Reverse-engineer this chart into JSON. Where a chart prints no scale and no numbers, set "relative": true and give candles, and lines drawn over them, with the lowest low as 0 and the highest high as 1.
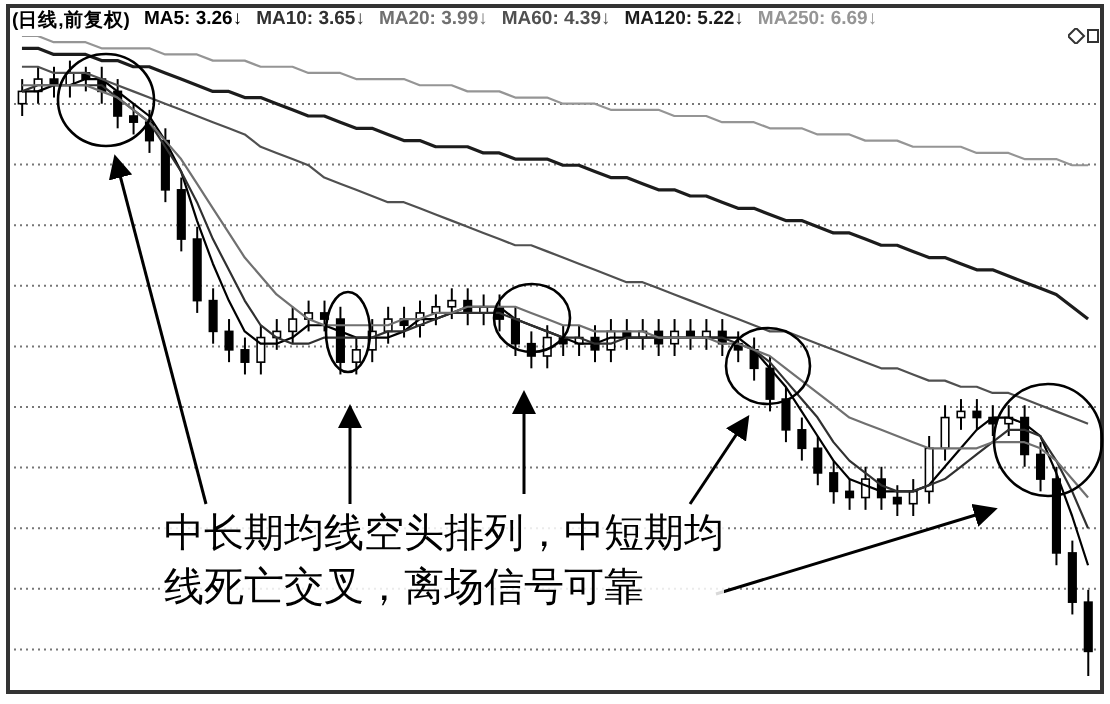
{
  "chart_data": {
    "type": "candlestick",
    "title": "(日线,前复权)",
    "relative": true,
    "grid": true,
    "legend": "top left",
    "annotations": [
      "中长期均线空头排列，中短期均线死亡交叉，离场信号可靠"
    ],
    "categories": [
      null,
      null,
      null,
      null,
      null,
      null,
      null,
      null,
      null,
      null,
      null,
      null,
      null,
      null,
      null,
      null,
      null,
      null,
      null,
      null,
      null,
      null,
      null,
      null,
      null,
      null,
      null,
      null,
      null,
      null,
      null,
      null,
      null,
      null,
      null,
      null,
      null,
      null,
      null,
      null,
      null,
      null,
      null,
      null,
      null,
      null,
      null,
      null,
      null,
      null,
      null,
      null,
      null,
      null,
      null,
      null,
      null,
      null,
      null,
      null,
      null,
      null,
      null,
      null,
      null,
      null,
      null,
      null
    ],
    "ohlc": [
      [
        0.93,
        0.97,
        0.91,
        0.95
      ],
      [
        0.95,
        0.99,
        0.93,
        0.97
      ],
      [
        0.97,
        0.99,
        0.94,
        0.96
      ],
      [
        0.96,
        1.0,
        0.94,
        0.98
      ],
      [
        0.98,
        0.99,
        0.95,
        0.97
      ],
      [
        0.97,
        0.99,
        0.93,
        0.95
      ],
      [
        0.95,
        0.97,
        0.89,
        0.91
      ],
      [
        0.91,
        0.93,
        0.88,
        0.9
      ],
      [
        0.9,
        0.92,
        0.85,
        0.87
      ],
      [
        0.87,
        0.89,
        0.77,
        0.79
      ],
      [
        0.79,
        0.81,
        0.69,
        0.71
      ],
      [
        0.71,
        0.73,
        0.59,
        0.61
      ],
      [
        0.61,
        0.63,
        0.54,
        0.56
      ],
      [
        0.56,
        0.58,
        0.51,
        0.53
      ],
      [
        0.53,
        0.55,
        0.49,
        0.51
      ],
      [
        0.51,
        0.57,
        0.49,
        0.55
      ],
      [
        0.55,
        0.58,
        0.53,
        0.56
      ],
      [
        0.56,
        0.6,
        0.54,
        0.58
      ],
      [
        0.58,
        0.61,
        0.56,
        0.59
      ],
      [
        0.59,
        0.61,
        0.56,
        0.58
      ],
      [
        0.58,
        0.6,
        0.49,
        0.51
      ],
      [
        0.51,
        0.55,
        0.49,
        0.53
      ],
      [
        0.53,
        0.58,
        0.51,
        0.56
      ],
      [
        0.56,
        0.6,
        0.54,
        0.58
      ],
      [
        0.58,
        0.6,
        0.55,
        0.57
      ],
      [
        0.57,
        0.61,
        0.55,
        0.59
      ],
      [
        0.59,
        0.62,
        0.57,
        0.6
      ],
      [
        0.6,
        0.63,
        0.58,
        0.61
      ],
      [
        0.61,
        0.63,
        0.57,
        0.59
      ],
      [
        0.59,
        0.62,
        0.57,
        0.6
      ],
      [
        0.6,
        0.62,
        0.56,
        0.58
      ],
      [
        0.58,
        0.6,
        0.52,
        0.54
      ],
      [
        0.54,
        0.56,
        0.5,
        0.52
      ],
      [
        0.52,
        0.57,
        0.5,
        0.55
      ],
      [
        0.55,
        0.57,
        0.52,
        0.54
      ],
      [
        0.54,
        0.57,
        0.52,
        0.55
      ],
      [
        0.55,
        0.57,
        0.51,
        0.53
      ],
      [
        0.53,
        0.58,
        0.51,
        0.56
      ],
      [
        0.56,
        0.58,
        0.53,
        0.55
      ],
      [
        0.55,
        0.58,
        0.53,
        0.56
      ],
      [
        0.56,
        0.58,
        0.52,
        0.54
      ],
      [
        0.54,
        0.58,
        0.52,
        0.56
      ],
      [
        0.56,
        0.58,
        0.53,
        0.55
      ],
      [
        0.55,
        0.58,
        0.53,
        0.56
      ],
      [
        0.56,
        0.58,
        0.52,
        0.54
      ],
      [
        0.54,
        0.56,
        0.51,
        0.53
      ],
      [
        0.53,
        0.55,
        0.48,
        0.5
      ],
      [
        0.5,
        0.52,
        0.43,
        0.45
      ],
      [
        0.45,
        0.47,
        0.38,
        0.4
      ],
      [
        0.4,
        0.42,
        0.35,
        0.37
      ],
      [
        0.37,
        0.39,
        0.31,
        0.33
      ],
      [
        0.33,
        0.35,
        0.28,
        0.3
      ],
      [
        0.3,
        0.32,
        0.27,
        0.29
      ],
      [
        0.29,
        0.34,
        0.27,
        0.32
      ],
      [
        0.32,
        0.34,
        0.27,
        0.29
      ],
      [
        0.29,
        0.31,
        0.26,
        0.28
      ],
      [
        0.28,
        0.32,
        0.26,
        0.3
      ],
      [
        0.3,
        0.39,
        0.28,
        0.37
      ],
      [
        0.37,
        0.44,
        0.35,
        0.42
      ],
      [
        0.42,
        0.45,
        0.4,
        0.43
      ],
      [
        0.43,
        0.45,
        0.4,
        0.42
      ],
      [
        0.42,
        0.44,
        0.39,
        0.41
      ],
      [
        0.41,
        0.44,
        0.39,
        0.42
      ],
      [
        0.42,
        0.44,
        0.34,
        0.36
      ],
      [
        0.36,
        0.38,
        0.3,
        0.32
      ],
      [
        0.32,
        0.34,
        0.18,
        0.2
      ],
      [
        0.2,
        0.22,
        0.1,
        0.12
      ],
      [
        0.12,
        0.14,
        0.0,
        0.04
      ]
    ],
    "series": [
      {
        "type": "line",
        "name": "MA5: 3.26↓",
        "color": "#000000",
        "values": [
          0.95,
          0.95,
          0.96,
          0.96,
          0.97,
          0.97,
          0.95,
          0.93,
          0.91,
          0.87,
          0.82,
          0.74,
          0.67,
          0.61,
          0.56,
          0.54,
          0.54,
          0.55,
          0.57,
          0.57,
          0.56,
          0.55,
          0.55,
          0.55,
          0.56,
          0.58,
          0.58,
          0.59,
          0.6,
          0.6,
          0.6,
          0.58,
          0.57,
          0.56,
          0.55,
          0.54,
          0.54,
          0.55,
          0.55,
          0.55,
          0.55,
          0.55,
          0.55,
          0.55,
          0.55,
          0.55,
          0.53,
          0.5,
          0.47,
          0.43,
          0.39,
          0.35,
          0.32,
          0.31,
          0.3,
          0.3,
          0.3,
          0.31,
          0.34,
          0.37,
          0.4,
          0.42,
          0.42,
          0.41,
          0.39,
          0.33,
          0.26,
          0.18
        ]
      },
      {
        "type": "line",
        "name": "MA10: 3.65↓",
        "color": "#303030",
        "values": [
          0.95,
          0.96,
          0.96,
          0.96,
          0.96,
          0.96,
          0.94,
          0.92,
          0.9,
          0.86,
          0.82,
          0.77,
          0.71,
          0.66,
          0.61,
          0.57,
          0.55,
          0.54,
          0.54,
          0.55,
          0.55,
          0.55,
          0.55,
          0.56,
          0.56,
          0.57,
          0.58,
          0.59,
          0.59,
          0.59,
          0.59,
          0.58,
          0.57,
          0.56,
          0.55,
          0.55,
          0.54,
          0.54,
          0.55,
          0.55,
          0.55,
          0.55,
          0.55,
          0.55,
          0.55,
          0.54,
          0.53,
          0.51,
          0.48,
          0.45,
          0.42,
          0.38,
          0.35,
          0.33,
          0.31,
          0.3,
          0.3,
          0.31,
          0.32,
          0.34,
          0.36,
          0.38,
          0.4,
          0.4,
          0.39,
          0.35,
          0.3,
          0.24
        ]
      },
      {
        "type": "line",
        "name": "MA20: 3.99↓",
        "color": "#707070",
        "values": [
          0.96,
          0.96,
          0.96,
          0.96,
          0.96,
          0.95,
          0.94,
          0.92,
          0.9,
          0.87,
          0.84,
          0.8,
          0.76,
          0.72,
          0.68,
          0.65,
          0.62,
          0.6,
          0.58,
          0.57,
          0.57,
          0.57,
          0.57,
          0.57,
          0.58,
          0.58,
          0.59,
          0.59,
          0.6,
          0.6,
          0.6,
          0.6,
          0.59,
          0.58,
          0.57,
          0.57,
          0.56,
          0.56,
          0.56,
          0.56,
          0.55,
          0.55,
          0.55,
          0.55,
          0.54,
          0.54,
          0.53,
          0.52,
          0.5,
          0.48,
          0.46,
          0.44,
          0.42,
          0.41,
          0.4,
          0.39,
          0.38,
          0.37,
          0.37,
          0.37,
          0.37,
          0.38,
          0.38,
          0.38,
          0.37,
          0.35,
          0.32,
          0.29
        ]
      },
      {
        "type": "line",
        "name": "MA60: 4.39↓",
        "color": "#505050",
        "values": [
          0.99,
          0.99,
          0.98,
          0.98,
          0.98,
          0.97,
          0.96,
          0.95,
          0.94,
          0.93,
          0.92,
          0.91,
          0.9,
          0.89,
          0.88,
          0.86,
          0.85,
          0.84,
          0.83,
          0.81,
          0.8,
          0.79,
          0.78,
          0.77,
          0.77,
          0.76,
          0.75,
          0.74,
          0.73,
          0.72,
          0.71,
          0.7,
          0.7,
          0.69,
          0.68,
          0.67,
          0.66,
          0.65,
          0.64,
          0.64,
          0.63,
          0.62,
          0.61,
          0.6,
          0.59,
          0.58,
          0.57,
          0.56,
          0.56,
          0.55,
          0.54,
          0.53,
          0.52,
          0.51,
          0.5,
          0.5,
          0.49,
          0.48,
          0.48,
          0.47,
          0.47,
          0.46,
          0.46,
          0.45,
          0.44,
          0.43,
          0.42,
          0.41
        ]
      },
      {
        "type": "line",
        "name": "MA120: 5.22↓",
        "color": "#1c1c1c",
        "values": [
          1.02,
          1.02,
          1.01,
          1.01,
          1.01,
          1.0,
          1.0,
          0.99,
          0.99,
          0.98,
          0.97,
          0.96,
          0.95,
          0.95,
          0.94,
          0.94,
          0.93,
          0.92,
          0.91,
          0.91,
          0.9,
          0.89,
          0.89,
          0.88,
          0.87,
          0.87,
          0.86,
          0.86,
          0.86,
          0.85,
          0.85,
          0.84,
          0.84,
          0.84,
          0.83,
          0.83,
          0.82,
          0.81,
          0.81,
          0.8,
          0.79,
          0.79,
          0.78,
          0.78,
          0.77,
          0.76,
          0.76,
          0.75,
          0.74,
          0.74,
          0.73,
          0.72,
          0.72,
          0.71,
          0.7,
          0.7,
          0.69,
          0.68,
          0.68,
          0.67,
          0.66,
          0.66,
          0.65,
          0.64,
          0.63,
          0.62,
          0.6,
          0.58
        ]
      },
      {
        "type": "line",
        "name": "MA250: 6.69↓",
        "color": "#959595",
        "values": [
          1.04,
          1.04,
          1.03,
          1.03,
          1.03,
          1.02,
          1.02,
          1.02,
          1.02,
          1.01,
          1.01,
          1.01,
          1.0,
          1.0,
          1.0,
          0.99,
          0.99,
          0.99,
          0.98,
          0.98,
          0.98,
          0.97,
          0.97,
          0.97,
          0.97,
          0.96,
          0.96,
          0.96,
          0.95,
          0.95,
          0.95,
          0.94,
          0.94,
          0.94,
          0.93,
          0.93,
          0.93,
          0.92,
          0.92,
          0.92,
          0.92,
          0.91,
          0.91,
          0.91,
          0.9,
          0.9,
          0.9,
          0.89,
          0.89,
          0.89,
          0.88,
          0.88,
          0.88,
          0.87,
          0.87,
          0.87,
          0.86,
          0.86,
          0.86,
          0.86,
          0.85,
          0.85,
          0.85,
          0.84,
          0.84,
          0.84,
          0.83,
          0.83
        ]
      }
    ]
  }
}
